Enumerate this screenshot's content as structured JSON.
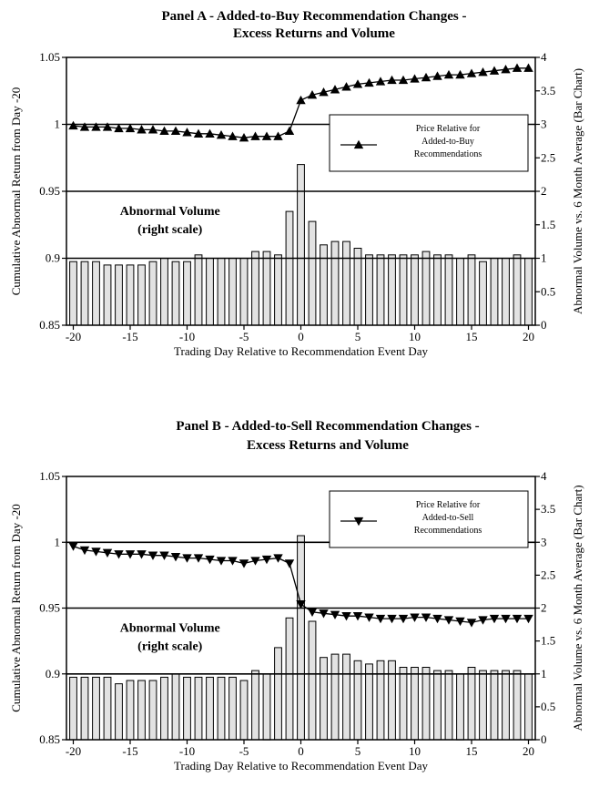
{
  "chart_data": [
    {
      "type": "bar+line",
      "title": "Panel A - Added-to-Buy Recommendation Changes -",
      "subtitle": "Excess Returns and Volume",
      "xlabel": "Trading Day Relative to Recommendation Event Day",
      "ylabel_left": "Cumulative Abnormal Return from Day -20",
      "ylabel_right": "Abnormal Volume vs. 6 Month Average (Bar Chart)",
      "xlim": [
        -20,
        20
      ],
      "ylim_left": [
        0.85,
        1.05
      ],
      "ylim_right": [
        0,
        4
      ],
      "x_ticks": [
        "-20",
        "-15",
        "-10",
        "-5",
        "0",
        "5",
        "10",
        "15",
        "20"
      ],
      "y_left_ticks": [
        "0.85",
        "0.9",
        "0.95",
        "1",
        "1.05"
      ],
      "y_right_ticks": [
        "0",
        "0.5",
        "1",
        "1.5",
        "2",
        "2.5",
        "3",
        "3.5",
        "4"
      ],
      "reference_lines_left": [
        1.0,
        0.95,
        0.9
      ],
      "annotation": [
        "Abnormal Volume",
        "(right scale)"
      ],
      "legend": [
        "Price Relative for",
        "Added-to-Buy",
        "Recommendations"
      ],
      "legend_position": "middle-right",
      "marker": "triangle-up",
      "x": [
        -20,
        -19,
        -18,
        -17,
        -16,
        -15,
        -14,
        -13,
        -12,
        -11,
        -10,
        -9,
        -8,
        -7,
        -6,
        -5,
        -4,
        -3,
        -2,
        -1,
        0,
        1,
        2,
        3,
        4,
        5,
        6,
        7,
        8,
        9,
        10,
        11,
        12,
        13,
        14,
        15,
        16,
        17,
        18,
        19,
        20
      ],
      "line_values": [
        0.999,
        0.998,
        0.998,
        0.998,
        0.997,
        0.997,
        0.996,
        0.996,
        0.995,
        0.995,
        0.994,
        0.993,
        0.993,
        0.992,
        0.991,
        0.99,
        0.991,
        0.991,
        0.991,
        0.995,
        1.018,
        1.022,
        1.024,
        1.026,
        1.028,
        1.03,
        1.031,
        1.032,
        1.033,
        1.033,
        1.034,
        1.035,
        1.036,
        1.037,
        1.037,
        1.038,
        1.039,
        1.04,
        1.041,
        1.042,
        1.042
      ],
      "bar_values": [
        0.95,
        0.95,
        0.95,
        0.9,
        0.9,
        0.9,
        0.9,
        0.95,
        1.0,
        0.95,
        0.95,
        1.05,
        1.0,
        1.0,
        1.0,
        1.0,
        1.1,
        1.1,
        1.05,
        1.7,
        2.4,
        1.55,
        1.2,
        1.25,
        1.25,
        1.15,
        1.05,
        1.05,
        1.05,
        1.05,
        1.05,
        1.1,
        1.05,
        1.05,
        1.0,
        1.05,
        0.95,
        1.0,
        1.0,
        1.05,
        1.0
      ]
    },
    {
      "type": "bar+line",
      "title": "Panel B - Added-to-Sell Recommendation Changes -",
      "subtitle": "Excess Returns and Volume",
      "xlabel": "Trading Day Relative to Recommendation Event Day",
      "ylabel_left": "Cumulative Abnormal Return from Day -20",
      "ylabel_right": "Abnormal Volume vs. 6 Month Average (Bar Chart)",
      "xlim": [
        -20,
        20
      ],
      "ylim_left": [
        0.85,
        1.05
      ],
      "ylim_right": [
        0,
        4
      ],
      "x_ticks": [
        "-20",
        "-15",
        "-10",
        "-5",
        "0",
        "5",
        "10",
        "15",
        "20"
      ],
      "y_left_ticks": [
        "0.85",
        "0.9",
        "0.95",
        "1",
        "1.05"
      ],
      "y_right_ticks": [
        "0",
        "0.5",
        "1",
        "1.5",
        "2",
        "2.5",
        "3",
        "3.5",
        "4"
      ],
      "reference_lines_left": [
        1.0,
        0.95,
        0.9
      ],
      "annotation": [
        "Abnormal Volume",
        "(right scale)"
      ],
      "legend": [
        "Price Relative for",
        "Added-to-Sell",
        "Recommendations"
      ],
      "legend_position": "top-right",
      "marker": "triangle-down",
      "x": [
        -20,
        -19,
        -18,
        -17,
        -16,
        -15,
        -14,
        -13,
        -12,
        -11,
        -10,
        -9,
        -8,
        -7,
        -6,
        -5,
        -4,
        -3,
        -2,
        -1,
        0,
        1,
        2,
        3,
        4,
        5,
        6,
        7,
        8,
        9,
        10,
        11,
        12,
        13,
        14,
        15,
        16,
        17,
        18,
        19,
        20
      ],
      "line_values": [
        0.997,
        0.994,
        0.993,
        0.992,
        0.991,
        0.991,
        0.991,
        0.99,
        0.99,
        0.989,
        0.988,
        0.988,
        0.987,
        0.986,
        0.986,
        0.984,
        0.986,
        0.987,
        0.988,
        0.984,
        0.953,
        0.947,
        0.946,
        0.945,
        0.944,
        0.944,
        0.943,
        0.942,
        0.942,
        0.942,
        0.943,
        0.943,
        0.942,
        0.941,
        0.94,
        0.939,
        0.941,
        0.942,
        0.942,
        0.942,
        0.942
      ],
      "bar_values": [
        0.95,
        0.95,
        0.95,
        0.95,
        0.85,
        0.9,
        0.9,
        0.9,
        0.95,
        1.0,
        0.95,
        0.95,
        0.95,
        0.95,
        0.95,
        0.9,
        1.05,
        1.0,
        1.4,
        1.85,
        3.1,
        1.8,
        1.25,
        1.3,
        1.3,
        1.2,
        1.15,
        1.2,
        1.2,
        1.1,
        1.1,
        1.1,
        1.05,
        1.05,
        1.0,
        1.1,
        1.05,
        1.05,
        1.05,
        1.05,
        1.0
      ]
    }
  ]
}
